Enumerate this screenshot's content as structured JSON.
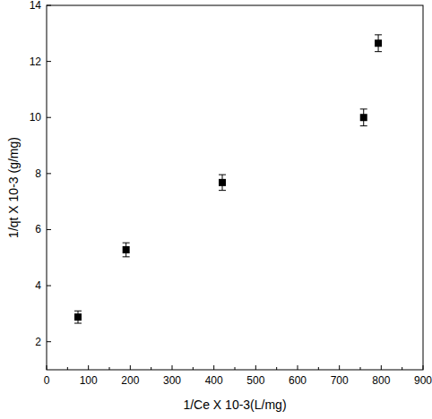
{
  "chart_data": {
    "type": "scatter",
    "x_label": "1/Ce X 10-3(L/mg)",
    "y_label": "1/qt X 10-3 (g/mg)",
    "x": [
      75,
      190,
      420,
      758,
      793
    ],
    "values": [
      2.88,
      5.28,
      7.68,
      10.0,
      12.65
    ],
    "errors": [
      0.22,
      0.25,
      0.28,
      0.3,
      0.3
    ],
    "color": "#000000",
    "marker": "square",
    "xlim": [
      0,
      900
    ],
    "xticks": [
      0,
      100,
      200,
      300,
      400,
      500,
      600,
      700,
      800,
      900
    ],
    "ylim": [
      1,
      14
    ],
    "yticks": [
      2,
      4,
      6,
      8,
      10,
      12,
      14
    ],
    "grid": false
  }
}
